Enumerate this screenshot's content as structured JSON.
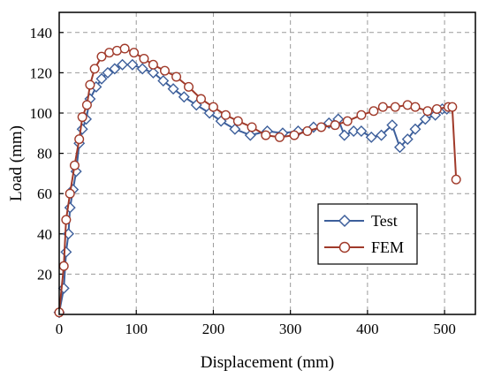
{
  "chart_data": {
    "type": "line",
    "xlabel": "Displacement (mm)",
    "ylabel": "Load (mm)",
    "xlim": [
      0,
      540
    ],
    "ylim": [
      0,
      150
    ],
    "x_ticks": [
      0,
      100,
      200,
      300,
      400,
      500
    ],
    "y_ticks": [
      20,
      40,
      60,
      80,
      100,
      120,
      140
    ],
    "grid": true,
    "legend_position": "lower-right",
    "series": [
      {
        "name": "Test",
        "color": "#3d5f9b",
        "marker": "diamond",
        "points": [
          [
            0,
            1
          ],
          [
            6,
            13
          ],
          [
            9,
            31
          ],
          [
            12,
            40
          ],
          [
            14,
            53
          ],
          [
            18,
            62
          ],
          [
            22,
            71
          ],
          [
            26,
            85
          ],
          [
            30,
            92
          ],
          [
            35,
            97
          ],
          [
            40,
            107
          ],
          [
            48,
            113
          ],
          [
            55,
            117
          ],
          [
            63,
            120
          ],
          [
            72,
            122
          ],
          [
            82,
            124
          ],
          [
            95,
            124
          ],
          [
            108,
            122
          ],
          [
            122,
            120
          ],
          [
            135,
            116
          ],
          [
            148,
            112
          ],
          [
            162,
            108
          ],
          [
            178,
            104
          ],
          [
            195,
            100
          ],
          [
            210,
            96
          ],
          [
            228,
            92
          ],
          [
            248,
            89
          ],
          [
            270,
            91
          ],
          [
            290,
            90
          ],
          [
            310,
            91
          ],
          [
            330,
            93
          ],
          [
            350,
            95
          ],
          [
            362,
            97
          ],
          [
            370,
            89
          ],
          [
            382,
            91
          ],
          [
            392,
            91
          ],
          [
            405,
            88
          ],
          [
            418,
            89
          ],
          [
            432,
            94
          ],
          [
            442,
            83
          ],
          [
            452,
            87
          ],
          [
            462,
            92
          ],
          [
            475,
            97
          ],
          [
            488,
            99
          ],
          [
            497,
            102
          ],
          [
            503,
            102
          ]
        ]
      },
      {
        "name": "FEM",
        "color": "#a03a2a",
        "marker": "circle",
        "points": [
          [
            0,
            1
          ],
          [
            6,
            24
          ],
          [
            9,
            47
          ],
          [
            14,
            60
          ],
          [
            20,
            74
          ],
          [
            26,
            87
          ],
          [
            30,
            98
          ],
          [
            36,
            104
          ],
          [
            40,
            114
          ],
          [
            46,
            122
          ],
          [
            55,
            128
          ],
          [
            65,
            130
          ],
          [
            75,
            131
          ],
          [
            85,
            132
          ],
          [
            97,
            130
          ],
          [
            110,
            127
          ],
          [
            122,
            124
          ],
          [
            137,
            121
          ],
          [
            152,
            118
          ],
          [
            168,
            113
          ],
          [
            184,
            107
          ],
          [
            200,
            103
          ],
          [
            216,
            99
          ],
          [
            232,
            96
          ],
          [
            250,
            93
          ],
          [
            268,
            89
          ],
          [
            286,
            88
          ],
          [
            305,
            89
          ],
          [
            322,
            91
          ],
          [
            340,
            93
          ],
          [
            358,
            94
          ],
          [
            374,
            96
          ],
          [
            392,
            99
          ],
          [
            408,
            101
          ],
          [
            420,
            103
          ],
          [
            436,
            103
          ],
          [
            452,
            104
          ],
          [
            462,
            103
          ],
          [
            478,
            101
          ],
          [
            490,
            102
          ],
          [
            505,
            103
          ],
          [
            510,
            103
          ],
          [
            515,
            67
          ]
        ]
      }
    ]
  }
}
